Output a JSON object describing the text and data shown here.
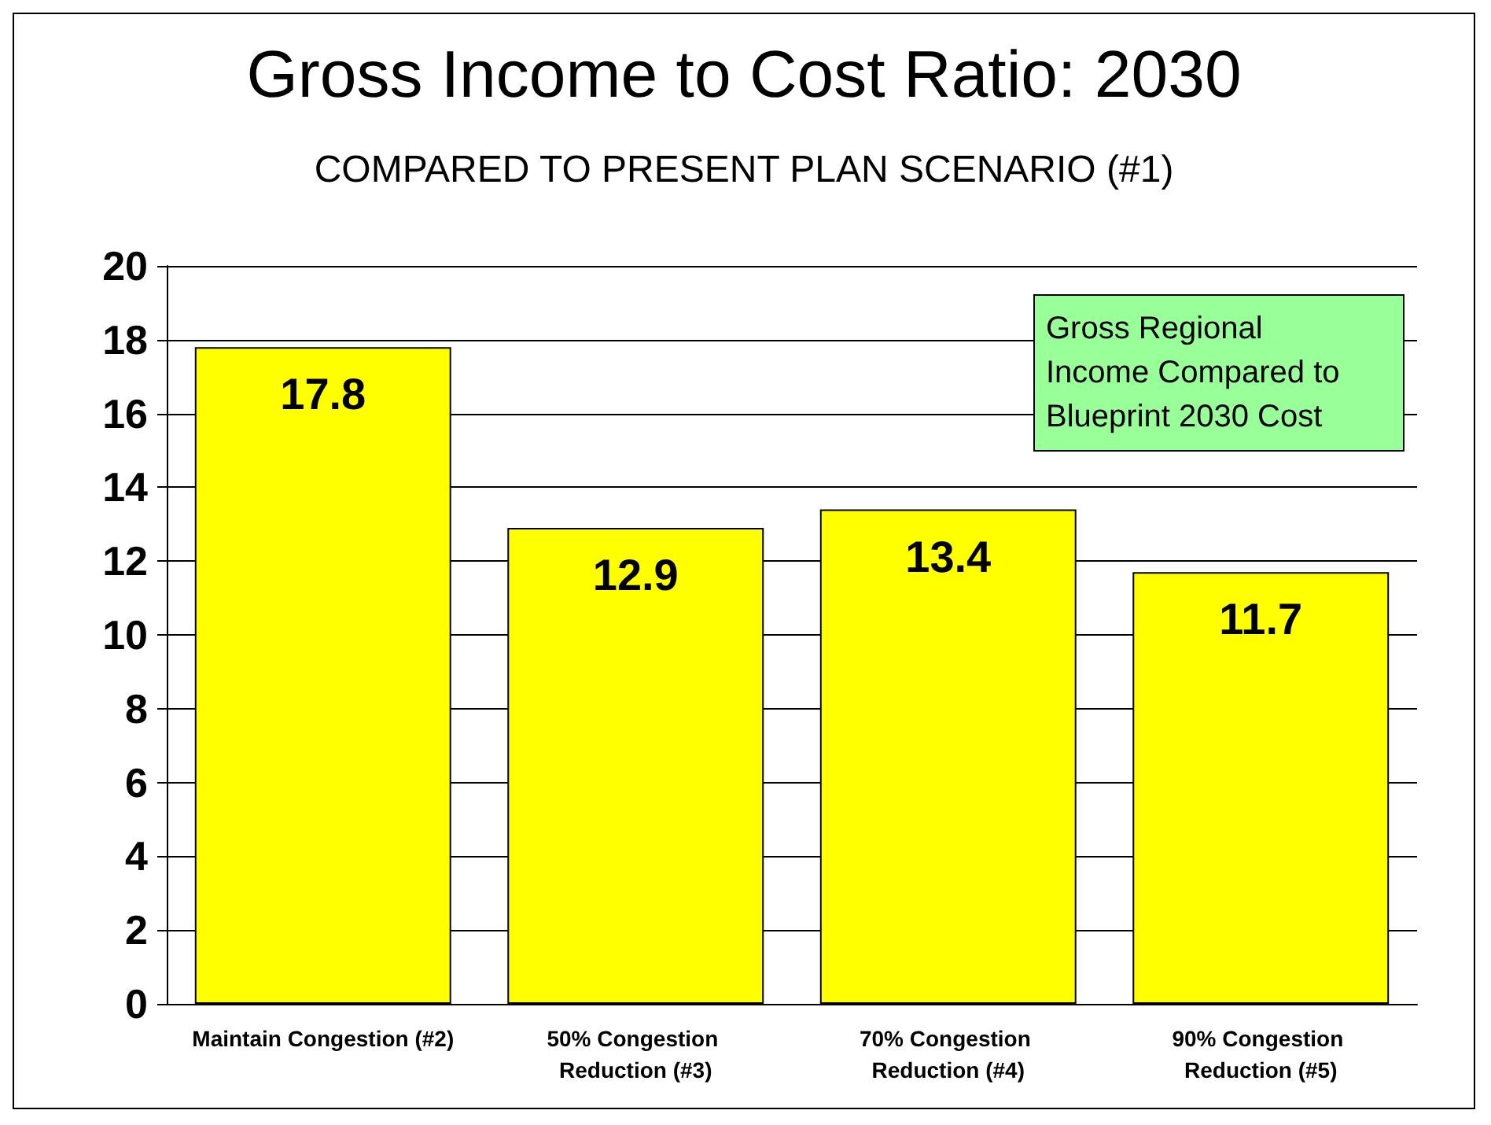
{
  "chart_data": {
    "type": "bar",
    "title": "Gross Income to Cost Ratio: 2030",
    "subtitle": "COMPARED TO PRESENT PLAN SCENARIO (#1)",
    "categories": [
      "Maintain Congestion (#2)",
      "50% Congestion Reduction (#3)",
      "70% Congestion Reduction (#4)",
      "90% Congestion Reduction (#5)"
    ],
    "values": [
      17.8,
      12.9,
      13.4,
      11.7
    ],
    "color": "#ffff00",
    "ylim": [
      0,
      20
    ],
    "yticks": [
      0,
      2,
      4,
      6,
      8,
      10,
      12,
      14,
      16,
      18,
      20
    ],
    "grid": "y",
    "data_labels": true,
    "annotations": [
      "Gross Regional Income Compared to Blueprint 2030 Cost"
    ]
  }
}
